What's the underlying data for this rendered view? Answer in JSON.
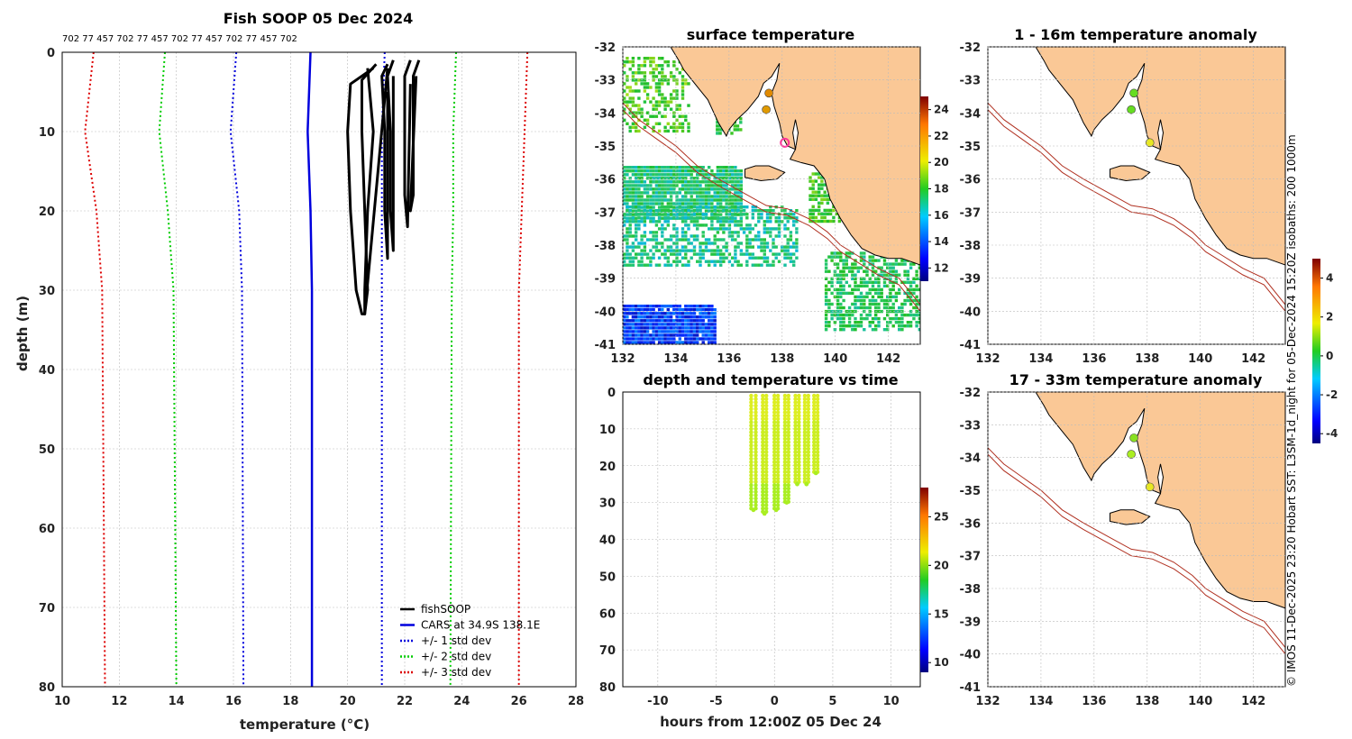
{
  "chart_data": [
    {
      "id": "profile",
      "type": "line",
      "title": "Fish SOOP 05 Dec 2024",
      "serial_labels": "702 77 457 702 77 457 702 77 457 702 77 457 702",
      "xlabel": "temperature (°C)",
      "ylabel": "depth (m)",
      "xlim": [
        10,
        28
      ],
      "ylim": [
        0,
        80
      ],
      "xticks": [
        "10",
        "12",
        "14",
        "16",
        "18",
        "20",
        "22",
        "24",
        "26",
        "28"
      ],
      "yticks": [
        "0",
        "10",
        "20",
        "30",
        "40",
        "50",
        "60",
        "70",
        "80"
      ],
      "series": [
        {
          "name": "CARS at 34.9S 138.1E",
          "color": "#0000dd",
          "style": "solid",
          "x": [
            18.7,
            18.6,
            18.7,
            18.75,
            18.75
          ],
          "y": [
            0,
            10,
            20,
            30,
            80
          ]
        },
        {
          "name": "-1 std",
          "color": "#0000dd",
          "style": "dot",
          "x": [
            16.1,
            15.9,
            16.2,
            16.3,
            16.35
          ],
          "y": [
            0,
            10,
            20,
            30,
            80
          ]
        },
        {
          "name": "+1 std",
          "color": "#0000dd",
          "style": "dot",
          "x": [
            21.3,
            21.2,
            21.2,
            21.2,
            21.2
          ],
          "y": [
            0,
            10,
            20,
            30,
            80
          ]
        },
        {
          "name": "-2 std",
          "color": "#00cc00",
          "style": "dot",
          "x": [
            13.6,
            13.4,
            13.7,
            13.9,
            14.0
          ],
          "y": [
            0,
            10,
            20,
            30,
            80
          ]
        },
        {
          "name": "+2 std",
          "color": "#00cc00",
          "style": "dot",
          "x": [
            23.8,
            23.7,
            23.7,
            23.65,
            23.6
          ],
          "y": [
            0,
            10,
            20,
            30,
            80
          ]
        },
        {
          "name": "-3 std",
          "color": "#dd0000",
          "style": "dot",
          "x": [
            11.1,
            10.8,
            11.2,
            11.4,
            11.5
          ],
          "y": [
            0,
            10,
            20,
            30,
            80
          ]
        },
        {
          "name": "+3 std",
          "color": "#dd0000",
          "style": "dot",
          "x": [
            26.3,
            26.2,
            26.1,
            26.0,
            26.0
          ],
          "y": [
            0,
            10,
            20,
            30,
            80
          ]
        }
      ],
      "fish_profiles": [
        {
          "x": [
            20.9,
            20.1,
            20.0,
            20.1,
            20.3,
            20.5,
            20.6,
            20.6,
            20.7,
            20.9,
            20.7
          ],
          "y": [
            2,
            4,
            10,
            20,
            30,
            33,
            33,
            30,
            20,
            10,
            2
          ]
        },
        {
          "x": [
            21.0,
            20.5,
            20.5,
            20.6,
            20.7,
            20.6,
            21.4
          ],
          "y": [
            1.5,
            3.5,
            10,
            20,
            30,
            33,
            2
          ]
        },
        {
          "x": [
            21.4,
            21.2,
            21.3,
            21.3,
            21.4,
            21.4
          ],
          "y": [
            1.5,
            3,
            10,
            20,
            26,
            5
          ]
        },
        {
          "x": [
            21.6,
            21.4,
            21.5,
            21.5,
            21.6,
            21.6
          ],
          "y": [
            1,
            3,
            10,
            20,
            25,
            3
          ]
        },
        {
          "x": [
            22.2,
            22.0,
            22.0,
            22.0,
            22.1,
            22.2
          ],
          "y": [
            1,
            3,
            10,
            18,
            22,
            4
          ]
        },
        {
          "x": [
            22.5,
            22.3,
            22.3,
            22.3,
            22.2,
            22.4
          ],
          "y": [
            1,
            3,
            10,
            18,
            20,
            3
          ]
        }
      ],
      "legend": [
        {
          "label": "fishSOOP",
          "color": "#000000",
          "style": "solid"
        },
        {
          "label": "CARS at 34.9S 138.1E",
          "color": "#0000dd",
          "style": "solid"
        },
        {
          "label": "+/- 1 std dev",
          "color": "#0000dd",
          "style": "dot"
        },
        {
          "label": "+/- 2 std dev",
          "color": "#00cc00",
          "style": "dot"
        },
        {
          "label": "+/- 3 std dev",
          "color": "#dd0000",
          "style": "dot"
        }
      ]
    },
    {
      "id": "sst_map",
      "type": "heatmap",
      "title": "surface temperature",
      "xticks": [
        "132",
        "134",
        "136",
        "138",
        "140",
        "142"
      ],
      "yticks": [
        "-32",
        "-33",
        "-34",
        "-35",
        "-36",
        "-37",
        "-38",
        "-39",
        "-40",
        "-41"
      ],
      "colorbar_ticks": [
        "12",
        "14",
        "16",
        "18",
        "20",
        "22",
        "24"
      ],
      "colorbar_range": [
        11,
        25
      ],
      "markers": [
        {
          "lon": 137.5,
          "lat": -33.4,
          "color": "#e08a00"
        },
        {
          "lon": 137.4,
          "lat": -33.9,
          "color": "#e09a00"
        },
        {
          "lon": 138.1,
          "lat": -34.9,
          "color": "#ff3399"
        }
      ]
    },
    {
      "id": "depth_time",
      "type": "scatter",
      "title": "depth and temperature vs time",
      "xlabel": "hours from 12:00Z 05 Dec 24",
      "xticks": [
        "-10",
        "-5",
        "0",
        "5",
        "10"
      ],
      "yticks": [
        "0",
        "10",
        "20",
        "30",
        "40",
        "50",
        "60",
        "70",
        "80"
      ],
      "xlim": [
        -13,
        12.5
      ],
      "ylim": [
        0,
        80
      ],
      "colorbar_ticks": [
        "10",
        "15",
        "20",
        "25"
      ],
      "colorbar_range": [
        9,
        28
      ],
      "casts": [
        {
          "t0": -2.0,
          "t1": -1.6,
          "maxdepth": 32
        },
        {
          "t0": -1.0,
          "t1": -0.7,
          "maxdepth": 33
        },
        {
          "t0": 0.0,
          "t1": 0.3,
          "maxdepth": 32
        },
        {
          "t0": 0.9,
          "t1": 1.2,
          "maxdepth": 30
        },
        {
          "t0": 1.8,
          "t1": 2.1,
          "maxdepth": 25
        },
        {
          "t0": 2.6,
          "t1": 2.9,
          "maxdepth": 25
        },
        {
          "t0": 3.4,
          "t1": 3.7,
          "maxdepth": 22
        }
      ]
    },
    {
      "id": "anom_1_16",
      "type": "heatmap",
      "title": "1 - 16m temperature anomaly",
      "xticks": [
        "132",
        "134",
        "136",
        "138",
        "140",
        "142"
      ],
      "yticks": [
        "-32",
        "-33",
        "-34",
        "-35",
        "-36",
        "-37",
        "-38",
        "-39",
        "-40",
        "-41"
      ],
      "markers": [
        {
          "lon": 137.5,
          "lat": -33.4,
          "color": "#66dd22"
        },
        {
          "lon": 137.4,
          "lat": -33.9,
          "color": "#66dd22"
        },
        {
          "lon": 138.1,
          "lat": -34.9,
          "color": "#e8e822"
        }
      ]
    },
    {
      "id": "anom_17_33",
      "type": "heatmap",
      "title": "17 - 33m temperature anomaly",
      "xticks": [
        "132",
        "134",
        "136",
        "138",
        "140",
        "142"
      ],
      "yticks": [
        "-32",
        "-33",
        "-34",
        "-35",
        "-36",
        "-37",
        "-38",
        "-39",
        "-40",
        "-41"
      ],
      "markers": [
        {
          "lon": 137.5,
          "lat": -33.4,
          "color": "#88e022"
        },
        {
          "lon": 137.4,
          "lat": -33.9,
          "color": "#aaee22"
        },
        {
          "lon": 138.1,
          "lat": -34.9,
          "color": "#e8e822"
        }
      ],
      "colorbar_ticks": [
        "-4",
        "-2",
        "0",
        "2",
        "4"
      ],
      "colorbar_range": [
        -4.5,
        5
      ]
    }
  ],
  "credit": "© IMOS 11-Dec-2025 23:20 Hobart SST: L3SM-1d_night for 05-Dec-2024 15:20Z isobaths: 200  1000m",
  "colors": {
    "land": "#fac896",
    "isobath": "#b03020"
  }
}
